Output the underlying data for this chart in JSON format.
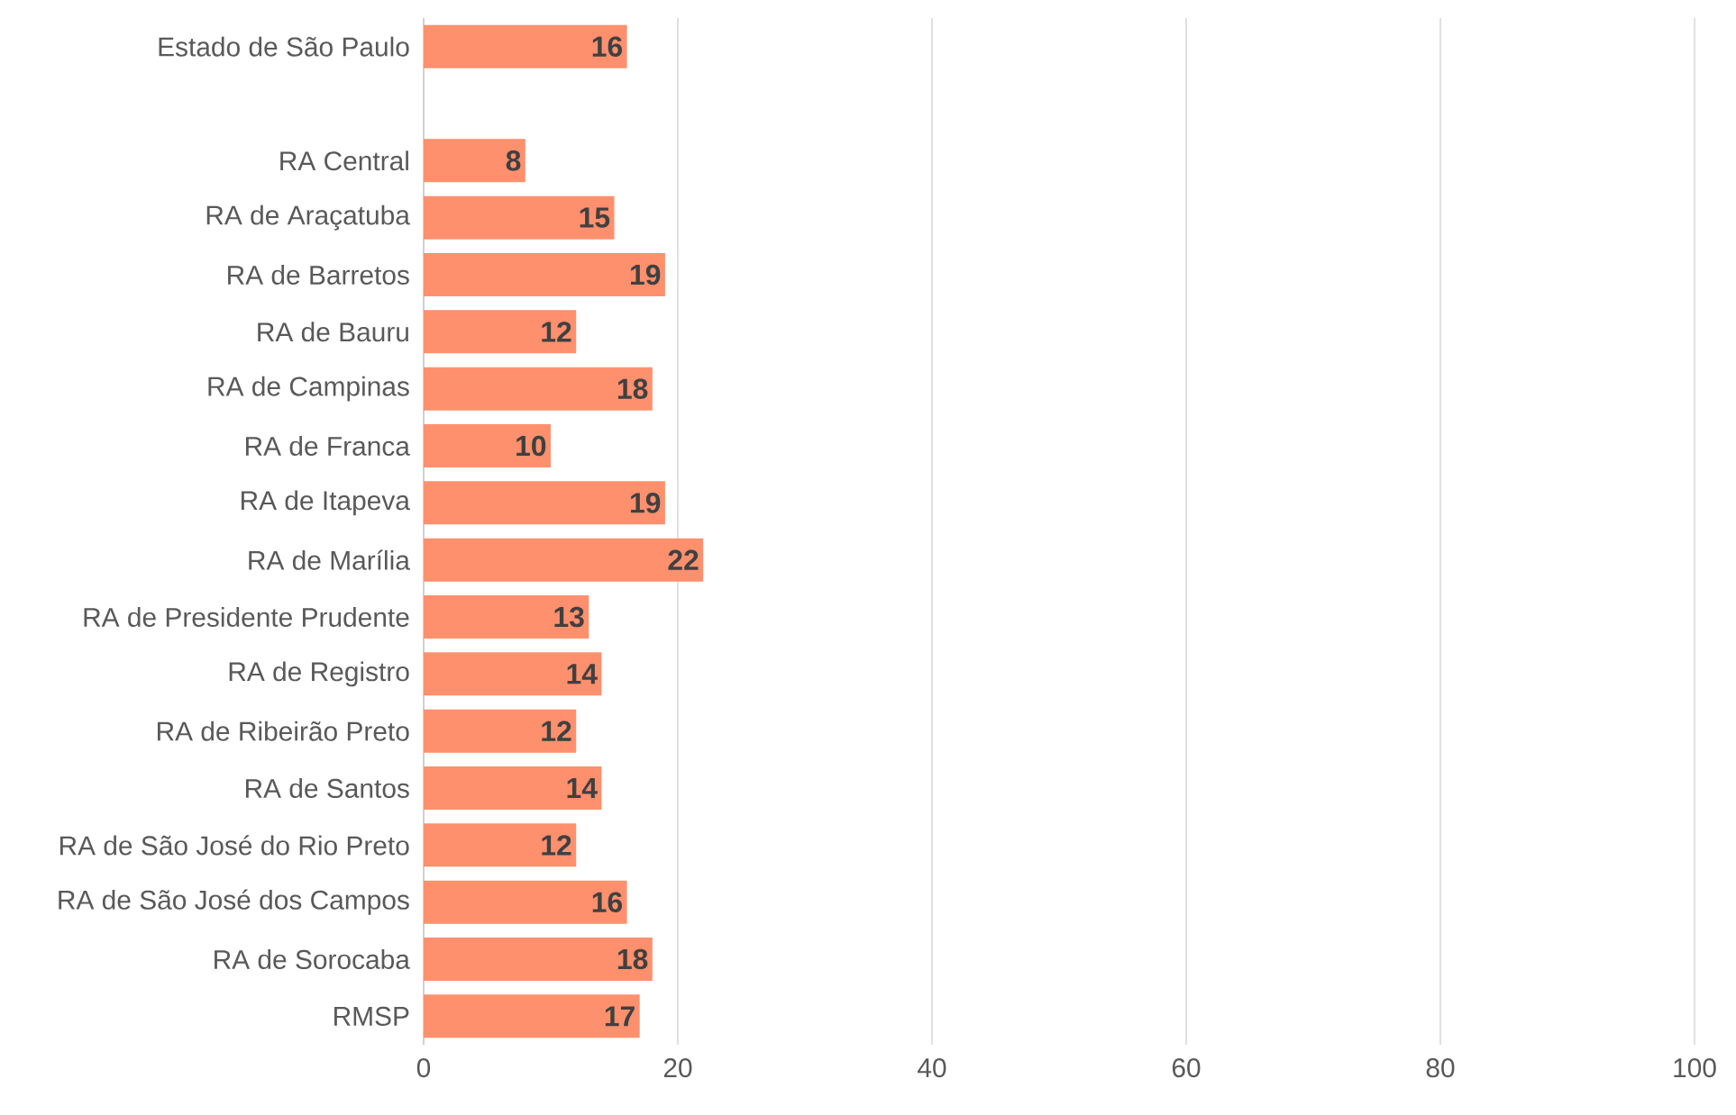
{
  "chart_data": {
    "type": "bar",
    "orientation": "horizontal",
    "categories": [
      "Estado de São Paulo",
      null,
      "RA Central",
      "RA de Araçatuba",
      "RA de Barretos",
      "RA de Bauru",
      "RA de Campinas",
      "RA de Franca",
      "RA de Itapeva",
      "RA de Marília",
      "RA de Presidente Prudente",
      "RA de Registro",
      "RA de Ribeirão Preto",
      "RA de Santos",
      "RA de São José do Rio Preto",
      "RA de São José dos Campos",
      "RA de Sorocaba",
      "RMSP"
    ],
    "values": [
      16,
      null,
      8,
      15,
      19,
      12,
      18,
      10,
      19,
      22,
      13,
      14,
      12,
      14,
      12,
      16,
      18,
      17
    ],
    "color": "#ff906e",
    "xlim": [
      0,
      100
    ],
    "xticks": [
      0,
      20,
      40,
      60,
      80,
      100
    ],
    "grid": "x",
    "data_labels": true
  }
}
